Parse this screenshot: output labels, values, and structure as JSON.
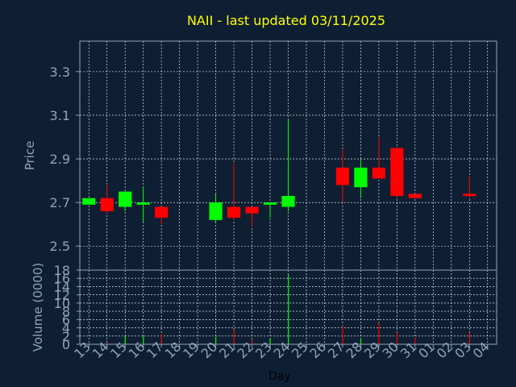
{
  "chart_data": [
    {
      "type": "candlestick",
      "title": "NAII - last updated 03/11/2025",
      "ylabel": "Price",
      "ylim": [
        2.39,
        3.44
      ],
      "yticks": [
        "2.5",
        "2.7",
        "2.9",
        "3.1",
        "3.3"
      ],
      "ytick_values": [
        2.5,
        2.7,
        2.9,
        3.1,
        3.3
      ],
      "grid": true,
      "colors": {
        "up": "#00ff00",
        "down": "#ff0000",
        "grid": "#ffffff",
        "axis": "#8fa3bd",
        "title": "#ffff00"
      },
      "categories": [
        "13",
        "14",
        "15",
        "16",
        "17",
        "18",
        "19",
        "20",
        "21",
        "22",
        "23",
        "24",
        "25",
        "26",
        "27",
        "28",
        "29",
        "30",
        "31",
        "01",
        "02",
        "03",
        "04"
      ],
      "candles": [
        {
          "x": "13",
          "open": 2.69,
          "high": 2.72,
          "low": 2.69,
          "close": 2.72
        },
        {
          "x": "14",
          "open": 2.72,
          "high": 2.78,
          "low": 2.65,
          "close": 2.66
        },
        {
          "x": "15",
          "open": 2.68,
          "high": 2.75,
          "low": 2.66,
          "close": 2.75
        },
        {
          "x": "16",
          "open": 2.69,
          "high": 2.77,
          "low": 2.61,
          "close": 2.7
        },
        {
          "x": "17",
          "open": 2.68,
          "high": 2.68,
          "low": 2.6,
          "close": 2.63
        },
        {
          "x": "20",
          "open": 2.62,
          "high": 2.74,
          "low": 2.61,
          "close": 2.7
        },
        {
          "x": "21",
          "open": 2.68,
          "high": 2.88,
          "low": 2.62,
          "close": 2.63
        },
        {
          "x": "22",
          "open": 2.68,
          "high": 2.68,
          "low": 2.59,
          "close": 2.65
        },
        {
          "x": "23",
          "open": 2.69,
          "high": 2.7,
          "low": 2.63,
          "close": 2.7
        },
        {
          "x": "24",
          "open": 2.68,
          "high": 3.08,
          "low": 2.66,
          "close": 2.73
        },
        {
          "x": "27",
          "open": 2.86,
          "high": 2.94,
          "low": 2.7,
          "close": 2.78
        },
        {
          "x": "28",
          "open": 2.77,
          "high": 2.9,
          "low": 2.72,
          "close": 2.86
        },
        {
          "x": "29",
          "open": 2.86,
          "high": 3.0,
          "low": 2.81,
          "close": 2.81
        },
        {
          "x": "30",
          "open": 2.95,
          "high": 2.95,
          "low": 2.72,
          "close": 2.73
        },
        {
          "x": "31",
          "open": 2.74,
          "high": 2.74,
          "low": 2.72,
          "close": 2.72
        },
        {
          "x": "03",
          "open": 2.74,
          "high": 2.82,
          "low": 2.72,
          "close": 2.73
        }
      ]
    },
    {
      "type": "bar",
      "xlabel": "Day",
      "ylabel": "Volume (0000)",
      "ylim": [
        0,
        18
      ],
      "yticks": [
        "0",
        "2",
        "4",
        "6",
        "8",
        "10",
        "12",
        "14",
        "16",
        "18"
      ],
      "ytick_values": [
        0,
        2,
        4,
        6,
        8,
        10,
        12,
        14,
        16,
        18
      ],
      "grid": true,
      "categories": [
        "13",
        "14",
        "15",
        "16",
        "17",
        "18",
        "19",
        "20",
        "21",
        "22",
        "23",
        "24",
        "25",
        "26",
        "27",
        "28",
        "29",
        "30",
        "31",
        "01",
        "02",
        "03",
        "04"
      ],
      "bars": [
        {
          "x": "13",
          "value": 0.2,
          "color": "#00ff00"
        },
        {
          "x": "14",
          "value": 0.4,
          "color": "#ff0000"
        },
        {
          "x": "15",
          "value": 2.0,
          "color": "#00ff00"
        },
        {
          "x": "16",
          "value": 2.0,
          "color": "#00ff00"
        },
        {
          "x": "17",
          "value": 2.5,
          "color": "#ff0000"
        },
        {
          "x": "20",
          "value": 1.8,
          "color": "#00ff00"
        },
        {
          "x": "21",
          "value": 3.5,
          "color": "#ff0000"
        },
        {
          "x": "22",
          "value": 1.2,
          "color": "#ff0000"
        },
        {
          "x": "23",
          "value": 1.5,
          "color": "#00ff00"
        },
        {
          "x": "24",
          "value": 16.8,
          "color": "#00ff00"
        },
        {
          "x": "27",
          "value": 4.5,
          "color": "#ff0000"
        },
        {
          "x": "28",
          "value": 1.5,
          "color": "#00ff00"
        },
        {
          "x": "29",
          "value": 5.2,
          "color": "#ff0000"
        },
        {
          "x": "30",
          "value": 2.8,
          "color": "#ff0000"
        },
        {
          "x": "31",
          "value": 1.5,
          "color": "#ff0000"
        },
        {
          "x": "03",
          "value": 2.8,
          "color": "#ff0000"
        }
      ]
    }
  ]
}
